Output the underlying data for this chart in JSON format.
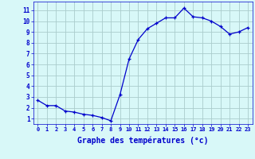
{
  "x": [
    0,
    1,
    2,
    3,
    4,
    5,
    6,
    7,
    8,
    9,
    10,
    11,
    12,
    13,
    14,
    15,
    16,
    17,
    18,
    19,
    20,
    21,
    22,
    23
  ],
  "y": [
    2.7,
    2.2,
    2.2,
    1.7,
    1.6,
    1.4,
    1.3,
    1.1,
    0.8,
    3.2,
    6.5,
    8.3,
    9.3,
    9.8,
    10.3,
    10.3,
    11.2,
    10.4,
    10.3,
    10.0,
    9.5,
    8.8,
    9.0,
    9.4
  ],
  "line_color": "#0000cc",
  "marker": "+",
  "marker_size": 3,
  "bg_color": "#d8f8f8",
  "grid_color": "#aacccc",
  "axis_color": "#0000cc",
  "xlabel": "Graphe des températures (°c)",
  "xlabel_fontsize": 7,
  "xtick_labels": [
    "0",
    "1",
    "2",
    "3",
    "4",
    "5",
    "6",
    "7",
    "8",
    "9",
    "10",
    "11",
    "12",
    "13",
    "14",
    "15",
    "16",
    "17",
    "18",
    "19",
    "20",
    "21",
    "22",
    "23"
  ],
  "ytick_labels": [
    "1",
    "2",
    "3",
    "4",
    "5",
    "6",
    "7",
    "8",
    "9",
    "10",
    "11"
  ],
  "ylim": [
    0.5,
    11.8
  ],
  "xlim": [
    -0.5,
    23.5
  ]
}
